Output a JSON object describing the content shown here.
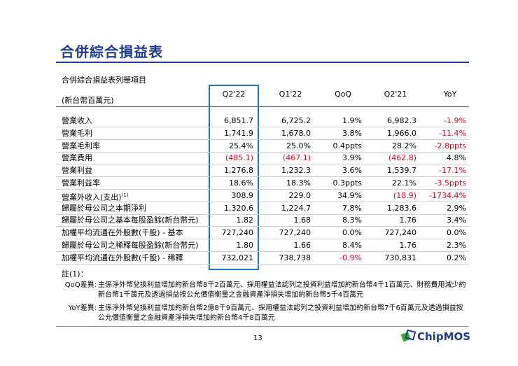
{
  "header": {
    "title": "合併綜合損益表",
    "subtitle": "合併綜合損益表列舉項目"
  },
  "table": {
    "columns": [
      "(新台幣百萬元)",
      "Q2'22",
      "Q1'22",
      "QoQ",
      "Q2'21",
      "YoY"
    ],
    "rows": [
      {
        "label": "營業收入",
        "cells": [
          "6,851.7",
          "6,725.2",
          "1.9%",
          "6,982.3",
          "-1.9%"
        ]
      },
      {
        "label": "營業毛利",
        "cells": [
          "1,741.9",
          "1,678.0",
          "3.8%",
          "1,966.0",
          "-11.4%"
        ]
      },
      {
        "label": "營業毛利率",
        "cells": [
          "25.4%",
          "25.0%",
          "0.4ppts",
          "28.2%",
          "-2.8ppts"
        ]
      },
      {
        "label": "營業費用",
        "cells": [
          "(485.1)",
          "(467.1)",
          "3.9%",
          "(462.8)",
          "4.8%"
        ]
      },
      {
        "label": "營業利益",
        "cells": [
          "1,276.8",
          "1,232.3",
          "3.6%",
          "1,539.7",
          "-17.1%"
        ]
      },
      {
        "label": "營業利益率",
        "cells": [
          "18.6%",
          "18.3%",
          "0.3ppts",
          "22.1%",
          "-3.5ppts"
        ]
      },
      {
        "label": "營業外收入(支出)",
        "sup": "(1)",
        "cells": [
          "308.9",
          "229.0",
          "34.9%",
          "(18.9)",
          "-1734.4%"
        ]
      },
      {
        "label": "歸屬於母公司之本期淨利",
        "cells": [
          "1,320.6",
          "1,224.7",
          "7.8%",
          "1,283.6",
          "2.9%"
        ]
      },
      {
        "label": "歸屬於母公司之基本每股盈餘(新台幣元)",
        "cells": [
          "1.82",
          "1.68",
          "8.3%",
          "1.76",
          "3.4%"
        ]
      },
      {
        "label": "加權平均流通在外股數(千股) - 基本",
        "cells": [
          "727,240",
          "727,240",
          "0.0%",
          "727,240",
          "0.0%"
        ]
      },
      {
        "label": "歸屬於母公司之稀釋每股盈餘(新台幣元)",
        "cells": [
          "1.80",
          "1.66",
          "8.4%",
          "1.76",
          "2.3%"
        ]
      },
      {
        "label": "加權平均流通在外股數(千股) - 稀釋",
        "cells": [
          "732,021",
          "738,738",
          "-0.9%",
          "730,831",
          "0.2%"
        ]
      }
    ]
  },
  "notes": {
    "heading": "註(1)：",
    "items": [
      {
        "label": "QoQ差異:",
        "text": "主係淨外幣兌換利益增加約新台幣8千2百萬元、採用權益法認列之投資利益增加約新台幣4千1百萬元、財務費用減少約新台幣1千萬元及透過損益按公允價值衡量之金融資產淨損失增加約新台幣5千4百萬元"
      },
      {
        "label": "YoY差異:",
        "text": "主係淨外幣兌換利益增加約新台幣2億8千9百萬元、採用權益法認列之投資利益增加約新台幣7千6百萬元及透過損益按公允價值衡量之金融資產淨損失增加約新台幣4千8百萬元"
      }
    ]
  },
  "footer": {
    "page": "13",
    "logo": "ChipMOS"
  }
}
